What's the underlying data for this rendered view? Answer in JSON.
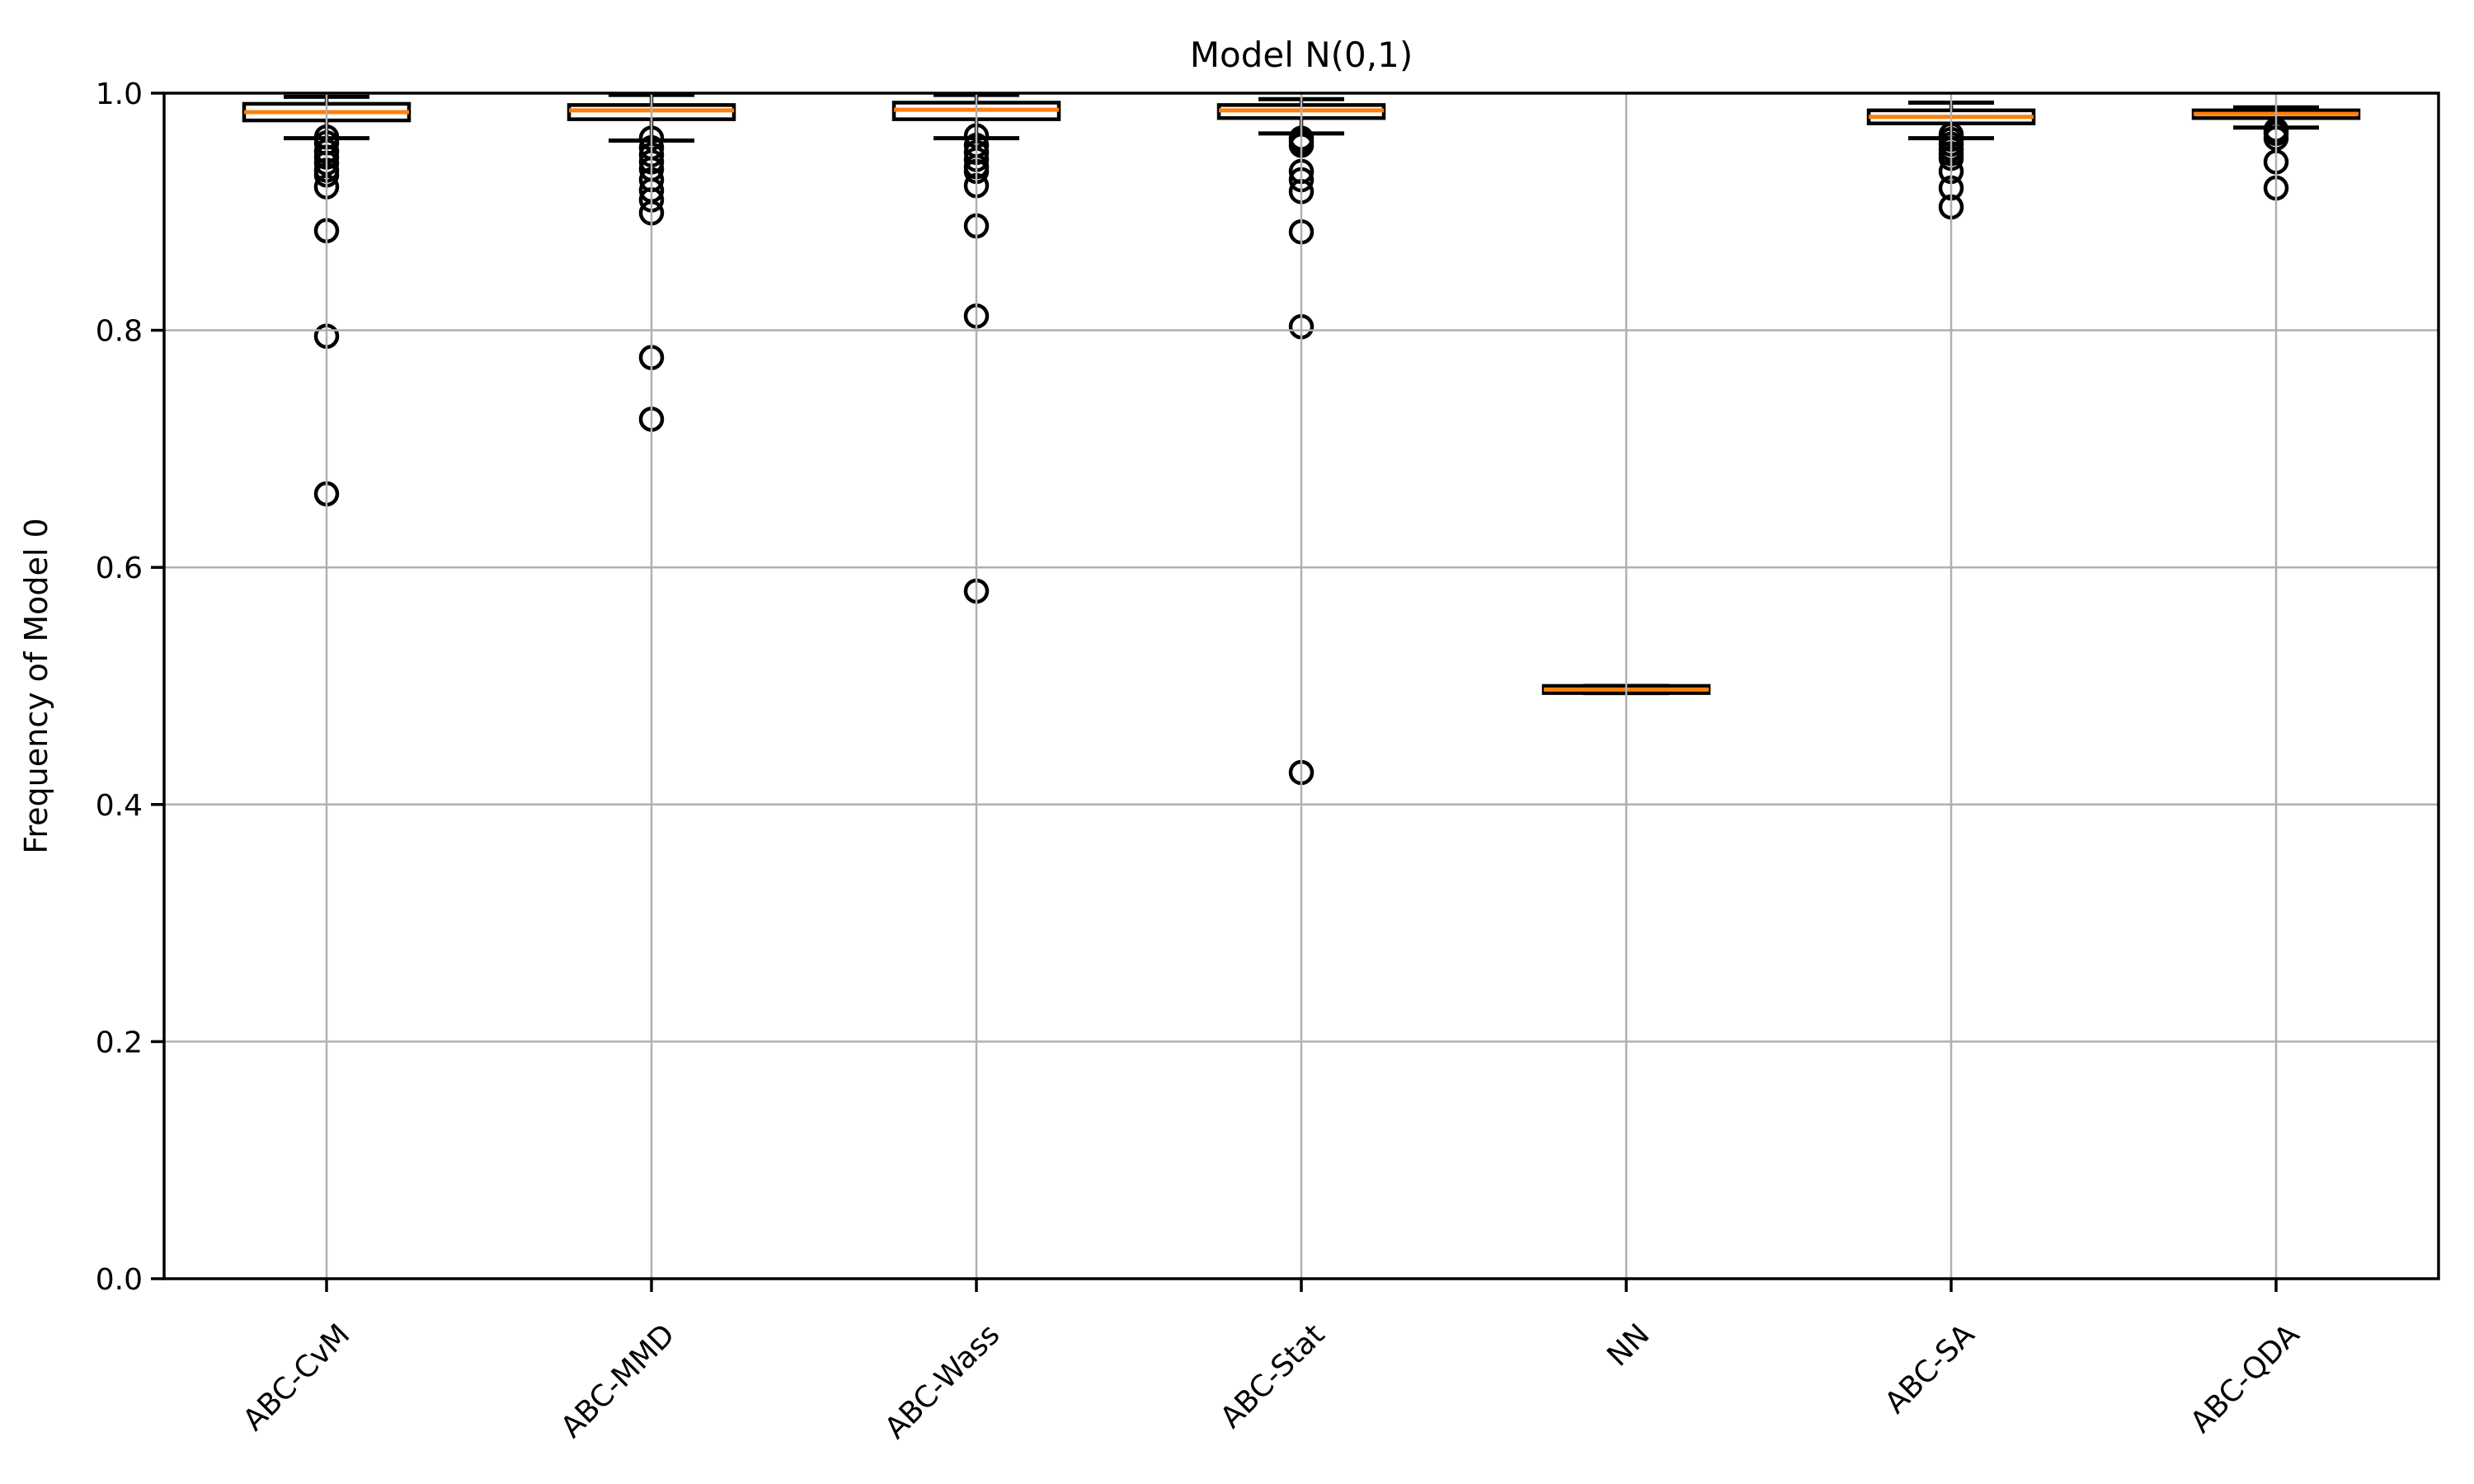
{
  "chart_data": {
    "type": "boxplot",
    "title": "Model N(0,1)",
    "xlabel": "",
    "ylabel": "Frequency of Model 0",
    "ylim": [
      0.0,
      1.0
    ],
    "yticks": [
      0.0,
      0.2,
      0.4,
      0.6,
      0.8,
      1.0
    ],
    "grid": true,
    "legend": null,
    "colors": {
      "median": "#ff7f0e",
      "box_edge": "#000000",
      "grid": "#b0b0b0",
      "spine": "#000000",
      "background": "#ffffff"
    },
    "categories": [
      "ABC-CvM",
      "ABC-MMD",
      "ABC-Wass",
      "ABC-Stat",
      "NN",
      "ABC-SA",
      "ABC-QDA"
    ],
    "series": [
      {
        "name": "ABC-CvM",
        "whislo": 0.962,
        "q1": 0.977,
        "med": 0.984,
        "q3": 0.991,
        "whishi": 0.997,
        "fliers": [
          0.963,
          0.958,
          0.951,
          0.946,
          0.941,
          0.935,
          0.931,
          0.921,
          0.884,
          0.795,
          0.662
        ]
      },
      {
        "name": "ABC-MMD",
        "whislo": 0.96,
        "q1": 0.978,
        "med": 0.9855,
        "q3": 0.99,
        "whishi": 0.9985,
        "fliers": [
          0.962,
          0.954,
          0.948,
          0.942,
          0.936,
          0.927,
          0.918,
          0.91,
          0.899,
          0.777,
          0.725
        ]
      },
      {
        "name": "ABC-Wass",
        "whislo": 0.962,
        "q1": 0.978,
        "med": 0.986,
        "q3": 0.992,
        "whishi": 0.9985,
        "fliers": [
          0.964,
          0.956,
          0.95,
          0.944,
          0.938,
          0.934,
          0.922,
          0.888,
          0.812,
          0.58
        ]
      },
      {
        "name": "ABC-Stat",
        "whislo": 0.966,
        "q1": 0.979,
        "med": 0.9855,
        "q3": 0.99,
        "whishi": 0.995,
        "fliers": [
          0.962,
          0.959,
          0.956,
          0.934,
          0.927,
          0.917,
          0.883,
          0.803,
          0.427
        ]
      },
      {
        "name": "NN",
        "whislo": 0.494,
        "q1": 0.494,
        "med": 0.497,
        "q3": 0.5,
        "whishi": 0.5,
        "fliers": []
      },
      {
        "name": "ABC-SA",
        "whislo": 0.962,
        "q1": 0.9745,
        "med": 0.98,
        "q3": 0.9855,
        "whishi": 0.992,
        "fliers": [
          0.965,
          0.961,
          0.957,
          0.953,
          0.949,
          0.945,
          0.934,
          0.92,
          0.904
        ]
      },
      {
        "name": "ABC-QDA",
        "whislo": 0.971,
        "q1": 0.979,
        "med": 0.9825,
        "q3": 0.9855,
        "whishi": 0.988,
        "fliers": [
          0.969,
          0.966,
          0.962,
          0.942,
          0.92
        ]
      }
    ]
  },
  "layout_text": {
    "tick_format_decimals": 1
  }
}
